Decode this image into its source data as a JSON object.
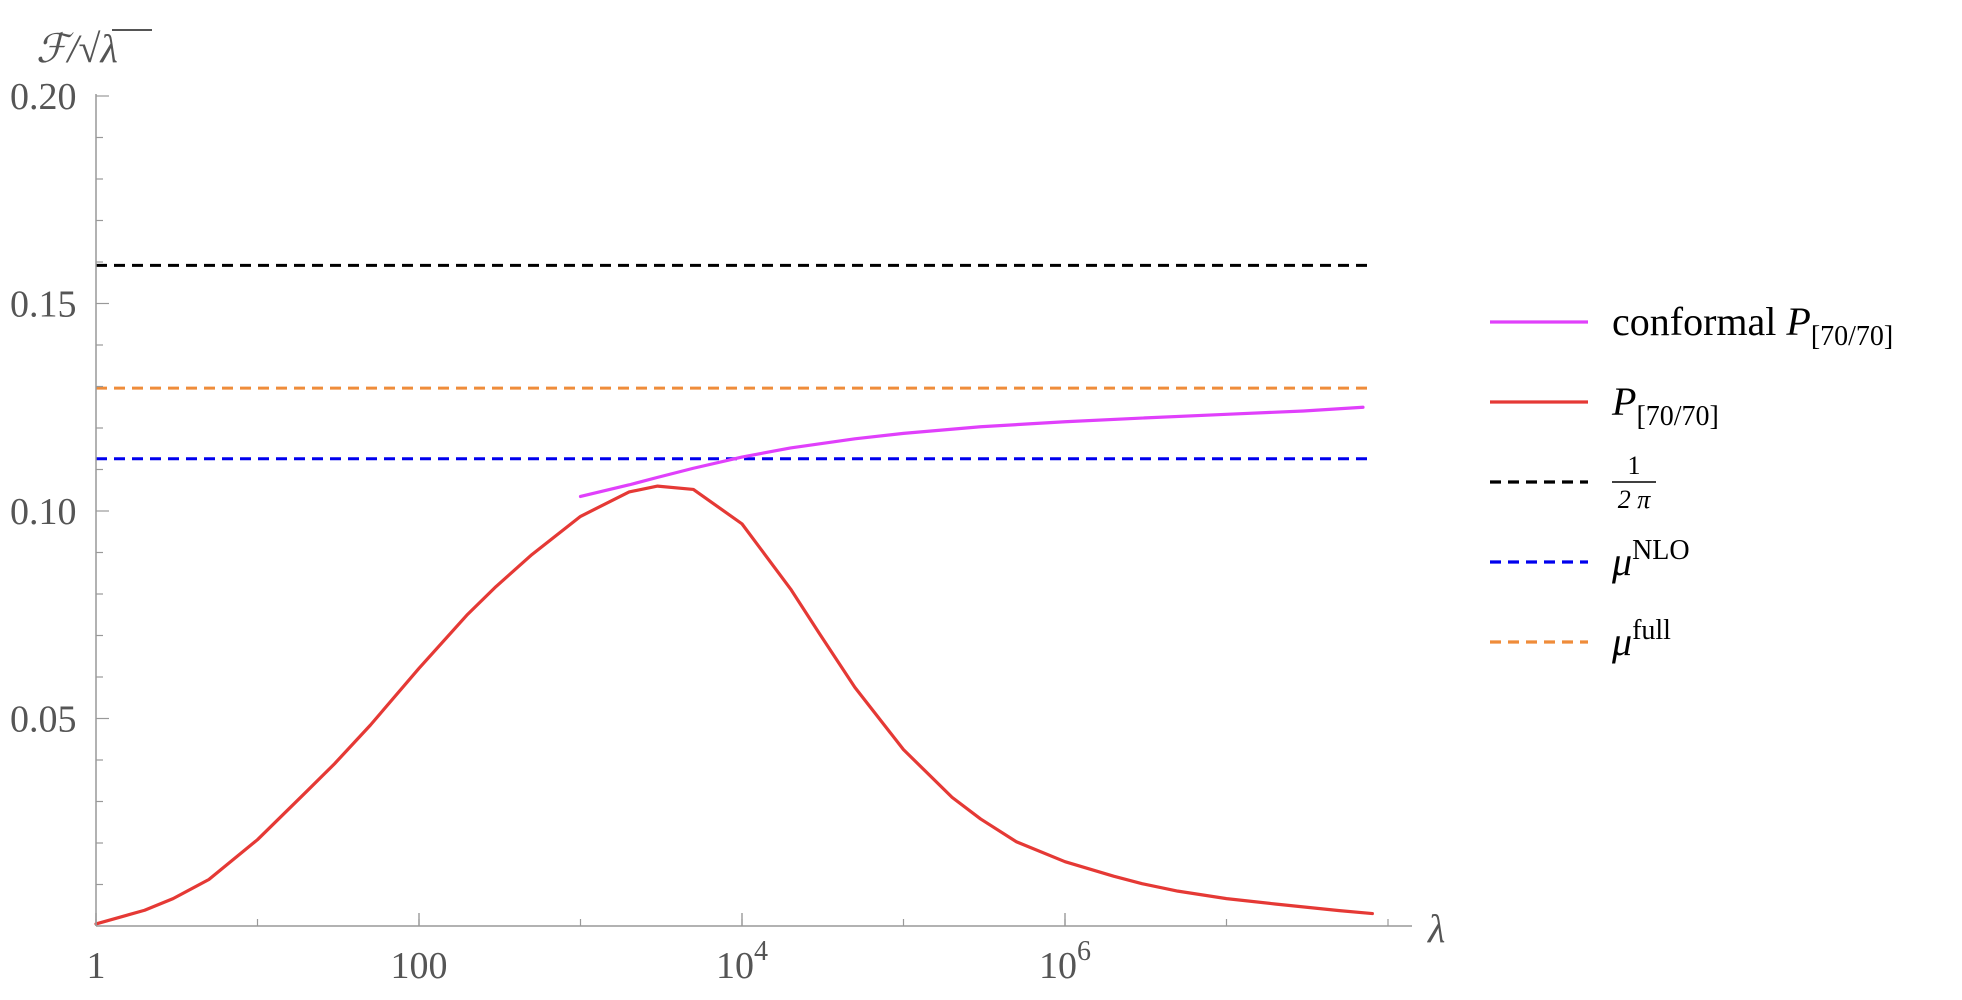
{
  "chart_data": {
    "type": "line",
    "x_scale": "log",
    "xlim": [
      1,
      100000000
    ],
    "ylim": [
      0,
      0.2
    ],
    "xlabel": "λ",
    "ylabel": "ℱ/√λ",
    "x_ticks": [
      {
        "value": 1,
        "base": "1",
        "exp": ""
      },
      {
        "value": 100,
        "base": "100",
        "exp": ""
      },
      {
        "value": 10000,
        "base": "10",
        "exp": "4"
      },
      {
        "value": 1000000,
        "base": "10",
        "exp": "6"
      }
    ],
    "y_ticks": [
      {
        "value": 0.05,
        "label": "0.05"
      },
      {
        "value": 0.1,
        "label": "0.10"
      },
      {
        "value": 0.15,
        "label": "0.15"
      },
      {
        "value": 0.2,
        "label": "0.20"
      }
    ],
    "legend": {
      "position": "right",
      "entries": [
        {
          "id": "conformal",
          "text": "conformal ",
          "math": "P",
          "sub": "[70/70]",
          "sup": "",
          "color": "#e040fb",
          "dash": "solid"
        },
        {
          "id": "pade",
          "text": "",
          "math": "P",
          "sub": "[70/70]",
          "sup": "",
          "color": "#e53935",
          "dash": "solid"
        },
        {
          "id": "inv2pi",
          "text": "",
          "math": "",
          "frac_num": "1",
          "frac_den": "2 π",
          "sub": "",
          "sup": "",
          "color": "#000000",
          "dash": "dashed"
        },
        {
          "id": "mu_nlo",
          "text": "",
          "math": "μ",
          "sub": "",
          "sup": "NLO",
          "color": "#0000ee",
          "dash": "dashed"
        },
        {
          "id": "mu_full",
          "text": "",
          "math": "μ",
          "sub": "",
          "sup": "full",
          "color": "#ef8c3a",
          "dash": "dashed"
        }
      ]
    },
    "series": [
      {
        "name": "conformal P[70/70]",
        "color": "#e040fb",
        "x": [
          1000,
          2000,
          3000,
          5000,
          10000,
          20000,
          50000,
          100000,
          300000,
          1000000,
          3000000,
          10000000,
          30000000,
          70000000
        ],
        "y": [
          0.1035,
          0.1063,
          0.1081,
          0.1103,
          0.113,
          0.1152,
          0.1174,
          0.1187,
          0.1203,
          0.1215,
          0.1224,
          0.1233,
          0.1241,
          0.125
        ]
      },
      {
        "name": "P[70/70]",
        "color": "#e53935",
        "x": [
          1,
          2,
          3,
          5,
          10,
          20,
          30,
          50,
          100,
          200,
          300,
          500,
          1000,
          2000,
          3000,
          5000,
          10000,
          20000,
          30000,
          50000,
          100000,
          200000,
          300000,
          500000,
          1000000,
          2000000,
          3000000,
          5000000,
          10000000,
          20000000,
          50000000,
          80000000
        ],
        "y": [
          0.0005,
          0.0038,
          0.0066,
          0.0112,
          0.0208,
          0.0323,
          0.0391,
          0.0484,
          0.0621,
          0.0751,
          0.0818,
          0.0895,
          0.0987,
          0.1046,
          0.106,
          0.1052,
          0.0969,
          0.0812,
          0.0706,
          0.0575,
          0.0425,
          0.031,
          0.0258,
          0.0203,
          0.0155,
          0.012,
          0.0102,
          0.0084,
          0.0066,
          0.0053,
          0.0037,
          0.003
        ]
      },
      {
        "name": "1/(2π)",
        "color": "#000000",
        "dash": "dashed",
        "x": [
          1,
          80000000
        ],
        "y": [
          0.1592,
          0.1592
        ]
      },
      {
        "name": "μ^NLO",
        "color": "#0000ee",
        "dash": "dashed",
        "x": [
          1,
          80000000
        ],
        "y": [
          0.1126,
          0.1126
        ]
      },
      {
        "name": "μ^full",
        "color": "#ef8c3a",
        "dash": "dashed",
        "x": [
          1,
          80000000
        ],
        "y": [
          0.1296,
          0.1296
        ]
      }
    ]
  }
}
